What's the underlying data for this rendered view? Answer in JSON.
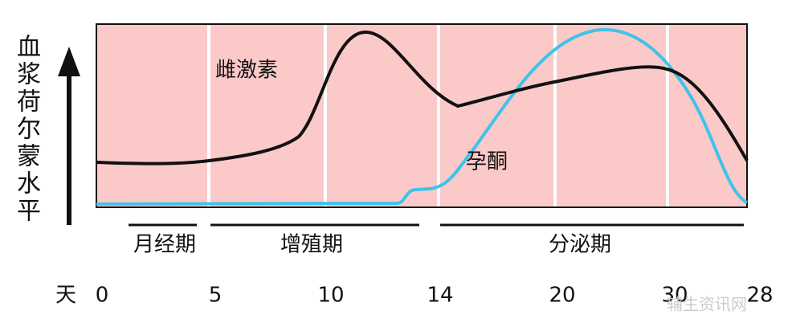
{
  "y_axis_label": [
    "血",
    "浆",
    "荷",
    "尔",
    "蒙",
    "水",
    "平"
  ],
  "curves": {
    "estrogen": "雌激素",
    "progesterone": "孕酮"
  },
  "phases": [
    "月经期",
    "增殖期",
    "分泌期"
  ],
  "x_axis": {
    "label": "天",
    "ticks": [
      "0",
      "5",
      "10",
      "14",
      "20",
      "30",
      "28"
    ]
  },
  "watermark": "辅生资讯网"
}
